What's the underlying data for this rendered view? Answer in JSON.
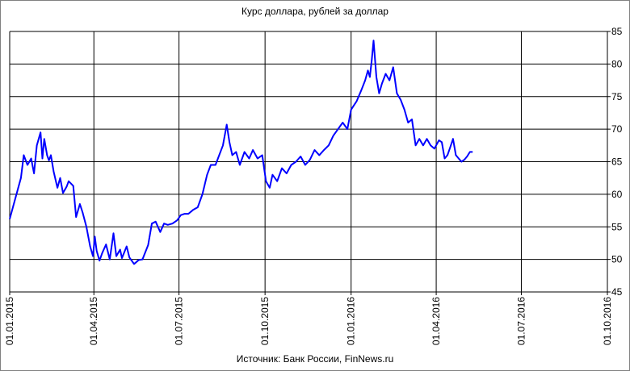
{
  "chart_data": {
    "type": "line",
    "title": "Курс доллара,  рублей за доллар",
    "source": "Источник: Банк России, FinNews.ru",
    "xlabel": "",
    "ylabel": "",
    "xlim": [
      "2015-01-01",
      "2016-10-01"
    ],
    "ylim": [
      45,
      85
    ],
    "grid": true,
    "y_axis_side": "right",
    "line_color": "#0000ff",
    "x_tick_labels": [
      "01.01.2015",
      "01.04.2015",
      "01.07.2015",
      "01.10.2015",
      "01.01.2016",
      "01.04.2016",
      "01.07.2016",
      "01.10.2016"
    ],
    "x_ticks": [
      "2015-01-01",
      "2015-04-01",
      "2015-07-01",
      "2015-10-01",
      "2016-01-01",
      "2016-04-01",
      "2016-07-01",
      "2016-10-01"
    ],
    "y_ticks": [
      45,
      50,
      55,
      60,
      65,
      70,
      75,
      80,
      85
    ],
    "series": [
      {
        "x": [
          "2015-01-01",
          "2015-01-13",
          "2015-01-16",
          "2015-01-20",
          "2015-01-24",
          "2015-01-27",
          "2015-01-30",
          "2015-02-03",
          "2015-02-05",
          "2015-02-07",
          "2015-02-10",
          "2015-02-12",
          "2015-02-14",
          "2015-02-17",
          "2015-02-21",
          "2015-02-24",
          "2015-02-27",
          "2015-03-03",
          "2015-03-05",
          "2015-03-10",
          "2015-03-13",
          "2015-03-17",
          "2015-03-20",
          "2015-03-24",
          "2015-03-28",
          "2015-03-31",
          "2015-04-02",
          "2015-04-04",
          "2015-04-07",
          "2015-04-10",
          "2015-04-14",
          "2015-04-18",
          "2015-04-22",
          "2015-04-25",
          "2015-04-29",
          "2015-05-01",
          "2015-05-06",
          "2015-05-09",
          "2015-05-14",
          "2015-05-19",
          "2015-05-23",
          "2015-05-29",
          "2015-06-02",
          "2015-06-06",
          "2015-06-11",
          "2015-06-15",
          "2015-06-19",
          "2015-06-24",
          "2015-06-29",
          "2015-07-03",
          "2015-07-07",
          "2015-07-11",
          "2015-07-16",
          "2015-07-21",
          "2015-07-26",
          "2015-07-31",
          "2015-08-04",
          "2015-08-09",
          "2015-08-13",
          "2015-08-17",
          "2015-08-21",
          "2015-08-24",
          "2015-08-27",
          "2015-08-31",
          "2015-09-04",
          "2015-09-09",
          "2015-09-14",
          "2015-09-18",
          "2015-09-23",
          "2015-09-28",
          "2015-10-02",
          "2015-10-06",
          "2015-10-09",
          "2015-10-14",
          "2015-10-19",
          "2015-10-24",
          "2015-10-29",
          "2015-11-03",
          "2015-11-08",
          "2015-11-13",
          "2015-11-18",
          "2015-11-23",
          "2015-11-28",
          "2015-12-03",
          "2015-12-08",
          "2015-12-13",
          "2015-12-18",
          "2015-12-23",
          "2015-12-28",
          "2016-01-01",
          "2016-01-07",
          "2016-01-12",
          "2016-01-16",
          "2016-01-19",
          "2016-01-21",
          "2016-01-23",
          "2016-01-25",
          "2016-01-28",
          "2016-01-31",
          "2016-02-03",
          "2016-02-07",
          "2016-02-11",
          "2016-02-15",
          "2016-02-19",
          "2016-02-23",
          "2016-02-27",
          "2016-03-02",
          "2016-03-06",
          "2016-03-10",
          "2016-03-14",
          "2016-03-18",
          "2016-03-22",
          "2016-03-26",
          "2016-03-30",
          "2016-04-04",
          "2016-04-07",
          "2016-04-10",
          "2016-04-13",
          "2016-04-16",
          "2016-04-19",
          "2016-04-22",
          "2016-04-25",
          "2016-04-28",
          "2016-05-01",
          "2016-05-04",
          "2016-05-07",
          "2016-05-10"
        ],
        "y": [
          56.2,
          62.5,
          66.0,
          64.5,
          65.5,
          63.2,
          67.5,
          69.5,
          65.5,
          68.5,
          66.0,
          65.2,
          66.0,
          63.5,
          61.0,
          62.5,
          60.2,
          61.2,
          62.0,
          61.3,
          56.5,
          58.5,
          57.2,
          55.0,
          52.0,
          50.5,
          53.5,
          51.3,
          49.8,
          51.0,
          52.3,
          50.0,
          54.0,
          50.5,
          51.5,
          50.2,
          52.0,
          50.3,
          49.3,
          49.9,
          50.0,
          52.2,
          55.5,
          55.8,
          54.2,
          55.5,
          55.3,
          55.5,
          56.0,
          56.8,
          57.0,
          57.0,
          57.6,
          58.0,
          60.0,
          63.0,
          64.5,
          64.5,
          66.0,
          67.5,
          70.7,
          68.0,
          66.0,
          66.5,
          64.5,
          66.5,
          65.5,
          66.8,
          65.5,
          66.0,
          62.0,
          61.0,
          63.0,
          62.0,
          64.0,
          63.2,
          64.5,
          65.0,
          65.8,
          64.5,
          65.3,
          66.8,
          66.0,
          66.8,
          67.5,
          69.0,
          70.0,
          71.0,
          70.0,
          73.0,
          74.3,
          76.0,
          77.5,
          79.0,
          78.0,
          80.5,
          83.6,
          78.0,
          75.5,
          77.0,
          78.5,
          77.5,
          79.5,
          75.5,
          74.5,
          73.0,
          71.0,
          71.5,
          67.5,
          68.5,
          67.5,
          68.5,
          67.5,
          67.0,
          68.3,
          68.0,
          65.5,
          66.0,
          67.2,
          68.5,
          66.0,
          65.5,
          65.0,
          65.3,
          65.8,
          66.5,
          66.5
        ]
      }
    ]
  }
}
